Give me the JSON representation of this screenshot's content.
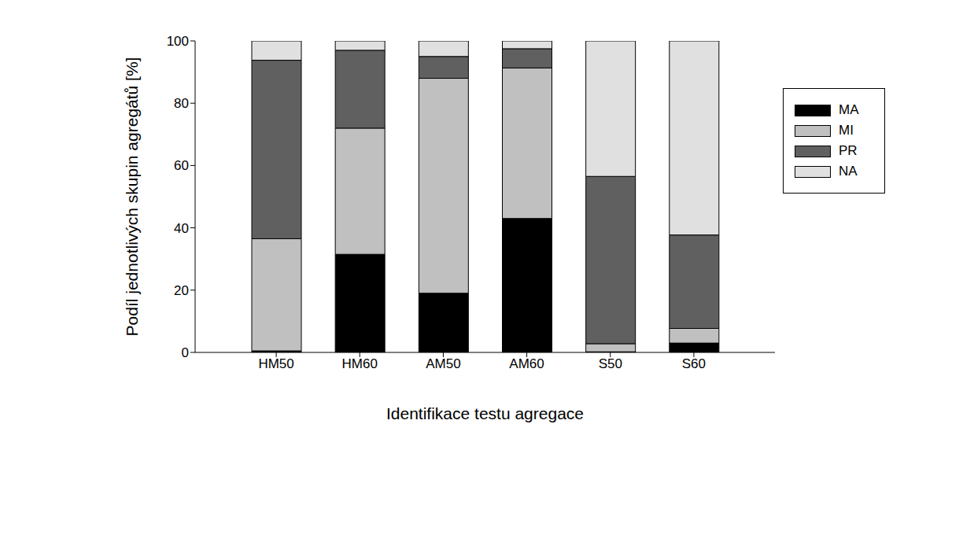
{
  "chart_data": {
    "type": "bar",
    "stacked": true,
    "grid": false,
    "legend": "upper right",
    "x_label": "Identifikace testu agregace",
    "y_label": "Podíl jednotlivých skupin agregátů [%]",
    "categories": [
      "HM50",
      "HM60",
      "AM50",
      "AM60",
      "S50",
      "S60"
    ],
    "ylim": [
      0,
      100
    ],
    "yticks": [
      0,
      20,
      40,
      60,
      80,
      100
    ],
    "series": [
      {
        "name": "MA",
        "color": "#000000",
        "values": [
          0.5,
          31.5,
          19,
          43,
          0.2,
          3
        ]
      },
      {
        "name": "MI",
        "color": "#c0c0c0",
        "values": [
          36,
          40.5,
          69,
          48.3,
          2.6,
          4.7
        ]
      },
      {
        "name": "PR",
        "color": "#606060",
        "values": [
          57.3,
          25,
          7,
          6.2,
          53.7,
          30
        ]
      },
      {
        "name": "NA",
        "color": "#e0e0e0",
        "values": [
          6.2,
          3,
          5,
          2.5,
          43.5,
          62.3
        ]
      }
    ]
  }
}
